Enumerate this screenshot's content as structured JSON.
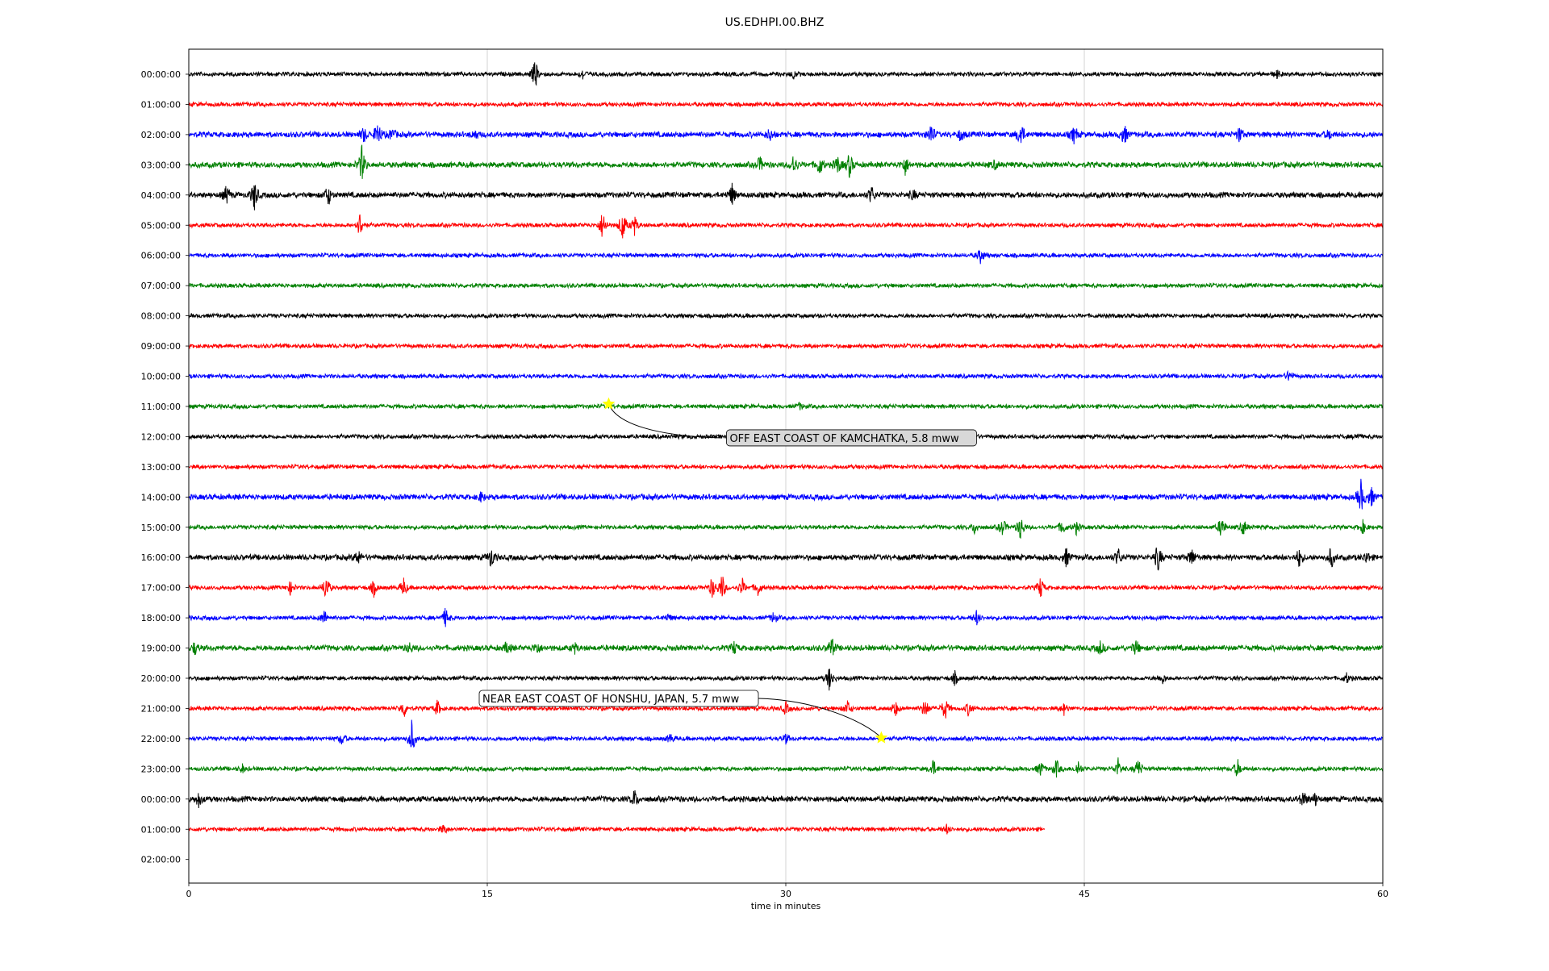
{
  "chart_data": {
    "type": "line",
    "subtype": "seismogram-dayplot",
    "title": "US.EDHPI.00.BHZ",
    "xlabel": "time in minutes",
    "ylabel": "",
    "xlim": [
      0,
      60
    ],
    "xticks": [
      0,
      15,
      30,
      45,
      60
    ],
    "grid": "vertical",
    "colors": [
      "#000000",
      "#ff0000",
      "#0000ff",
      "#008000"
    ],
    "row_labels": [
      "00:00:00",
      "01:00:00",
      "02:00:00",
      "03:00:00",
      "04:00:00",
      "05:00:00",
      "06:00:00",
      "07:00:00",
      "08:00:00",
      "09:00:00",
      "10:00:00",
      "11:00:00",
      "12:00:00",
      "13:00:00",
      "14:00:00",
      "15:00:00",
      "16:00:00",
      "17:00:00",
      "18:00:00",
      "19:00:00",
      "20:00:00",
      "21:00:00",
      "22:00:00",
      "23:00:00",
      "00:00:00",
      "01:00:00",
      "02:00:00"
    ],
    "rows": [
      {
        "noise": 3,
        "end": 60,
        "events": [
          [
            17.4,
            20
          ],
          [
            19.8,
            6
          ],
          [
            30.4,
            5
          ],
          [
            54.7,
            5
          ]
        ]
      },
      {
        "noise": 3,
        "end": 60,
        "events": []
      },
      {
        "noise": 4,
        "end": 60,
        "events": [
          [
            9.5,
            18
          ],
          [
            8.8,
            10
          ],
          [
            10.2,
            8
          ],
          [
            14.4,
            6
          ],
          [
            29.2,
            8
          ],
          [
            37.3,
            15
          ],
          [
            38.8,
            8
          ],
          [
            41.8,
            18
          ],
          [
            44.5,
            12
          ],
          [
            47.0,
            14
          ],
          [
            52.8,
            10
          ],
          [
            57.3,
            6
          ]
        ]
      },
      {
        "noise": 4,
        "end": 60,
        "events": [
          [
            8.7,
            24
          ],
          [
            28.7,
            10
          ],
          [
            30.4,
            14
          ],
          [
            31.7,
            14
          ],
          [
            32.6,
            12
          ],
          [
            33.2,
            16
          ],
          [
            36.0,
            12
          ],
          [
            40.5,
            5
          ]
        ]
      },
      {
        "noise": 4,
        "end": 60,
        "events": [
          [
            1.9,
            12
          ],
          [
            3.3,
            20
          ],
          [
            7.0,
            14
          ],
          [
            27.3,
            14
          ],
          [
            34.3,
            12
          ],
          [
            36.4,
            6
          ]
        ]
      },
      {
        "noise": 3,
        "end": 60,
        "events": [
          [
            8.6,
            16
          ],
          [
            20.8,
            20
          ],
          [
            21.8,
            22
          ],
          [
            22.4,
            12
          ]
        ]
      },
      {
        "noise": 3,
        "end": 60,
        "events": [
          [
            39.8,
            10
          ]
        ]
      },
      {
        "noise": 3,
        "end": 60,
        "events": []
      },
      {
        "noise": 3,
        "end": 60,
        "events": []
      },
      {
        "noise": 3,
        "end": 60,
        "events": []
      },
      {
        "noise": 3,
        "end": 60,
        "events": [
          [
            55.3,
            8
          ]
        ]
      },
      {
        "noise": 3,
        "end": 60,
        "events": [
          [
            30.7,
            4
          ]
        ]
      },
      {
        "noise": 3,
        "end": 60,
        "events": [
          [
            58.7,
            4
          ]
        ]
      },
      {
        "noise": 3,
        "end": 60,
        "events": []
      },
      {
        "noise": 4,
        "end": 60,
        "events": [
          [
            14.7,
            6
          ],
          [
            58.9,
            22
          ],
          [
            59.4,
            14
          ]
        ]
      },
      {
        "noise": 3,
        "end": 60,
        "events": [
          [
            39.5,
            8
          ],
          [
            40.9,
            12
          ],
          [
            41.8,
            16
          ],
          [
            43.9,
            10
          ],
          [
            44.6,
            8
          ],
          [
            51.9,
            16
          ],
          [
            53.0,
            10
          ],
          [
            59.0,
            8
          ]
        ]
      },
      {
        "noise": 4,
        "end": 60,
        "events": [
          [
            8.5,
            10
          ],
          [
            15.2,
            14
          ],
          [
            44.1,
            12
          ],
          [
            46.7,
            12
          ],
          [
            48.7,
            18
          ],
          [
            50.4,
            12
          ],
          [
            55.8,
            12
          ],
          [
            57.4,
            14
          ],
          [
            59.2,
            8
          ]
        ]
      },
      {
        "noise": 3,
        "end": 60,
        "events": [
          [
            5.1,
            8
          ],
          [
            6.9,
            18
          ],
          [
            9.3,
            10
          ],
          [
            10.8,
            12
          ],
          [
            26.3,
            14
          ],
          [
            26.8,
            18
          ],
          [
            27.8,
            12
          ],
          [
            28.6,
            10
          ],
          [
            42.8,
            14
          ]
        ]
      },
      {
        "noise": 3,
        "end": 60,
        "events": [
          [
            6.8,
            10
          ],
          [
            12.9,
            12
          ],
          [
            24.1,
            5
          ],
          [
            29.4,
            8
          ],
          [
            39.6,
            10
          ]
        ]
      },
      {
        "noise": 4,
        "end": 60,
        "events": [
          [
            0.3,
            8
          ],
          [
            11.1,
            6
          ],
          [
            16.0,
            8
          ],
          [
            17.5,
            8
          ],
          [
            19.4,
            6
          ],
          [
            27.4,
            8
          ],
          [
            32.3,
            14
          ],
          [
            45.8,
            8
          ],
          [
            47.6,
            10
          ]
        ]
      },
      {
        "noise": 3,
        "end": 60,
        "events": [
          [
            32.2,
            16
          ],
          [
            38.5,
            8
          ],
          [
            48.9,
            8
          ],
          [
            58.2,
            6
          ]
        ]
      },
      {
        "noise": 3,
        "end": 60,
        "events": [
          [
            10.8,
            12
          ],
          [
            12.5,
            10
          ],
          [
            30.0,
            8
          ],
          [
            33.1,
            10
          ],
          [
            35.5,
            10
          ],
          [
            37.0,
            14
          ],
          [
            38.0,
            16
          ],
          [
            39.2,
            10
          ],
          [
            44.0,
            8
          ]
        ]
      },
      {
        "noise": 3,
        "end": 60,
        "events": [
          [
            7.7,
            8
          ],
          [
            11.2,
            22
          ],
          [
            24.2,
            6
          ],
          [
            30.0,
            6
          ]
        ]
      },
      {
        "noise": 3,
        "end": 60,
        "events": [
          [
            2.7,
            5
          ],
          [
            37.4,
            12
          ],
          [
            42.8,
            10
          ],
          [
            43.6,
            12
          ],
          [
            44.7,
            10
          ],
          [
            46.7,
            12
          ],
          [
            47.7,
            14
          ],
          [
            52.7,
            12
          ]
        ]
      },
      {
        "noise": 4,
        "end": 60,
        "events": [
          [
            0.5,
            10
          ],
          [
            22.4,
            12
          ],
          [
            56.0,
            12
          ],
          [
            56.6,
            8
          ]
        ]
      },
      {
        "noise": 3,
        "end": 43,
        "events": [
          [
            12.8,
            6
          ],
          [
            38.1,
            6
          ]
        ]
      },
      {
        "noise": 0,
        "end": 0,
        "events": []
      }
    ],
    "annotations": [
      {
        "text": "OFF EAST COAST OF KAMCHATKA, 5.8 mww",
        "row": 11,
        "minute": 21.1,
        "star_color": "#ffff00"
      },
      {
        "text": "NEAR EAST COAST OF HONSHU, JAPAN, 5.7 mww",
        "row": 22,
        "minute": 34.8,
        "star_color": "#ffff00"
      }
    ]
  }
}
